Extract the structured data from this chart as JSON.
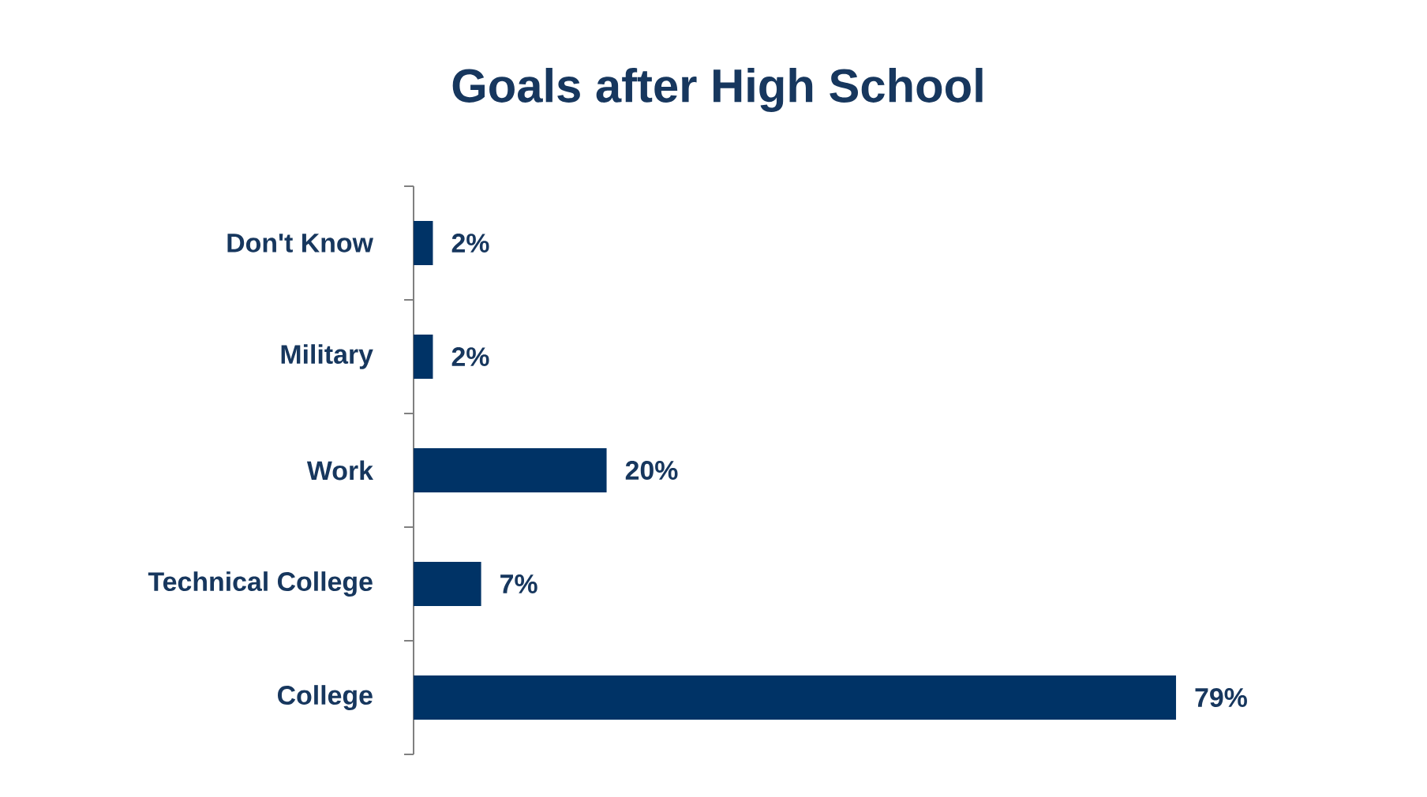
{
  "chart_data": {
    "type": "bar",
    "orientation": "horizontal",
    "title": "Goals after High School",
    "categories": [
      "Don't Know",
      "Military",
      "Work",
      "Technical College",
      "College"
    ],
    "values": [
      2,
      2,
      20,
      7,
      79
    ],
    "value_labels": [
      "2%",
      "2%",
      "20%",
      "7%",
      "79%"
    ],
    "color": "#003366"
  }
}
